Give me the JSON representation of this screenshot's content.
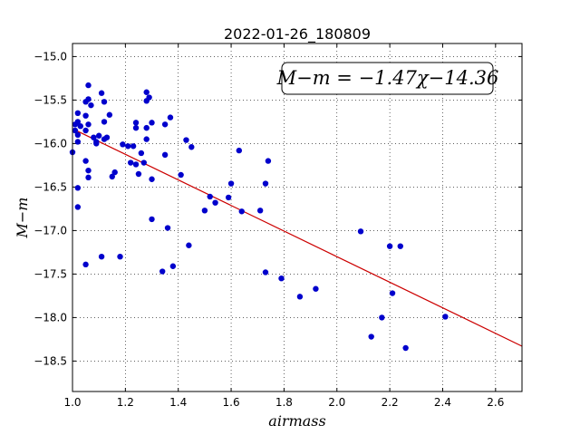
{
  "chart_data": {
    "type": "scatter",
    "title": "2022-01-26_180809",
    "xlabel": "airmass",
    "ylabel": "M−m",
    "xlim": [
      1.0,
      2.7
    ],
    "ylim": [
      -18.85,
      -14.85
    ],
    "y_inverted": true,
    "xticks": [
      "1.0",
      "1.2",
      "1.4",
      "1.6",
      "1.8",
      "2.0",
      "2.2",
      "2.4",
      "2.6"
    ],
    "yticks": [
      "−15.0",
      "−15.5",
      "−16.0",
      "−16.5",
      "−17.0",
      "−17.5",
      "−18.0",
      "−18.5"
    ],
    "grid": true,
    "annotation": "M−m = −1.47χ−14.36",
    "fit": {
      "slope": -1.47,
      "intercept": -14.36,
      "color": "#cc0000"
    },
    "point_color": "#0000cc",
    "points": [
      {
        "x": 1.0,
        "y": -16.1
      },
      {
        "x": 1.01,
        "y": -15.85
      },
      {
        "x": 1.01,
        "y": -15.78
      },
      {
        "x": 1.02,
        "y": -15.9
      },
      {
        "x": 1.02,
        "y": -15.75
      },
      {
        "x": 1.02,
        "y": -15.65
      },
      {
        "x": 1.02,
        "y": -15.98
      },
      {
        "x": 1.02,
        "y": -16.51
      },
      {
        "x": 1.02,
        "y": -16.73
      },
      {
        "x": 1.03,
        "y": -15.8
      },
      {
        "x": 1.05,
        "y": -15.52
      },
      {
        "x": 1.05,
        "y": -15.68
      },
      {
        "x": 1.05,
        "y": -15.85
      },
      {
        "x": 1.05,
        "y": -16.2
      },
      {
        "x": 1.05,
        "y": -17.39
      },
      {
        "x": 1.06,
        "y": -15.33
      },
      {
        "x": 1.06,
        "y": -15.49
      },
      {
        "x": 1.06,
        "y": -15.78
      },
      {
        "x": 1.06,
        "y": -16.31
      },
      {
        "x": 1.06,
        "y": -16.39
      },
      {
        "x": 1.07,
        "y": -15.56
      },
      {
        "x": 1.08,
        "y": -15.93
      },
      {
        "x": 1.09,
        "y": -15.98
      },
      {
        "x": 1.09,
        "y": -16.0
      },
      {
        "x": 1.1,
        "y": -15.91
      },
      {
        "x": 1.11,
        "y": -15.42
      },
      {
        "x": 1.11,
        "y": -17.3
      },
      {
        "x": 1.12,
        "y": -15.52
      },
      {
        "x": 1.12,
        "y": -15.75
      },
      {
        "x": 1.12,
        "y": -15.95
      },
      {
        "x": 1.13,
        "y": -15.93
      },
      {
        "x": 1.14,
        "y": -15.67
      },
      {
        "x": 1.15,
        "y": -16.38
      },
      {
        "x": 1.16,
        "y": -16.33
      },
      {
        "x": 1.18,
        "y": -17.3
      },
      {
        "x": 1.19,
        "y": -16.01
      },
      {
        "x": 1.21,
        "y": -16.03
      },
      {
        "x": 1.22,
        "y": -16.22
      },
      {
        "x": 1.23,
        "y": -16.03
      },
      {
        "x": 1.24,
        "y": -15.76
      },
      {
        "x": 1.24,
        "y": -15.82
      },
      {
        "x": 1.24,
        "y": -16.24
      },
      {
        "x": 1.25,
        "y": -16.35
      },
      {
        "x": 1.26,
        "y": -16.11
      },
      {
        "x": 1.27,
        "y": -16.22
      },
      {
        "x": 1.28,
        "y": -15.41
      },
      {
        "x": 1.28,
        "y": -15.51
      },
      {
        "x": 1.28,
        "y": -15.82
      },
      {
        "x": 1.28,
        "y": -15.95
      },
      {
        "x": 1.29,
        "y": -15.47
      },
      {
        "x": 1.3,
        "y": -15.76
      },
      {
        "x": 1.3,
        "y": -16.41
      },
      {
        "x": 1.3,
        "y": -16.87
      },
      {
        "x": 1.34,
        "y": -17.47
      },
      {
        "x": 1.35,
        "y": -15.78
      },
      {
        "x": 1.35,
        "y": -16.13
      },
      {
        "x": 1.36,
        "y": -16.97
      },
      {
        "x": 1.37,
        "y": -15.7
      },
      {
        "x": 1.38,
        "y": -17.41
      },
      {
        "x": 1.41,
        "y": -16.36
      },
      {
        "x": 1.43,
        "y": -15.96
      },
      {
        "x": 1.44,
        "y": -17.17
      },
      {
        "x": 1.45,
        "y": -16.04
      },
      {
        "x": 1.5,
        "y": -16.77
      },
      {
        "x": 1.52,
        "y": -16.61
      },
      {
        "x": 1.54,
        "y": -16.68
      },
      {
        "x": 1.59,
        "y": -16.62
      },
      {
        "x": 1.6,
        "y": -16.46
      },
      {
        "x": 1.63,
        "y": -16.08
      },
      {
        "x": 1.64,
        "y": -16.78
      },
      {
        "x": 1.71,
        "y": -16.77
      },
      {
        "x": 1.73,
        "y": -16.46
      },
      {
        "x": 1.73,
        "y": -17.48
      },
      {
        "x": 1.74,
        "y": -16.2
      },
      {
        "x": 1.79,
        "y": -17.55
      },
      {
        "x": 1.86,
        "y": -17.76
      },
      {
        "x": 1.92,
        "y": -17.67
      },
      {
        "x": 2.09,
        "y": -17.01
      },
      {
        "x": 2.13,
        "y": -18.22
      },
      {
        "x": 2.17,
        "y": -18.0
      },
      {
        "x": 2.2,
        "y": -17.18
      },
      {
        "x": 2.21,
        "y": -17.72
      },
      {
        "x": 2.24,
        "y": -17.18
      },
      {
        "x": 2.26,
        "y": -18.35
      },
      {
        "x": 2.41,
        "y": -17.99
      }
    ]
  }
}
